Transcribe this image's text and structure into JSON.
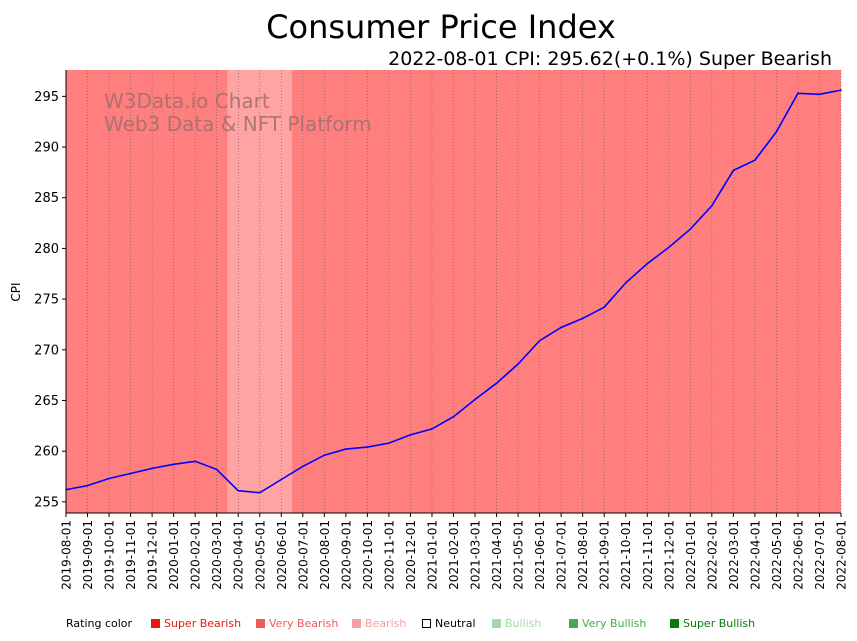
{
  "chart_data": {
    "type": "line",
    "title": "Consumer Price Index",
    "subtitle": "2022-08-01 CPI: 295.62(+0.1%) Super Bearish",
    "ylabel": "CPI",
    "xlabel": "",
    "ylim": [
      253.9,
      297.6
    ],
    "yticks": [
      255,
      260,
      265,
      270,
      275,
      280,
      285,
      290,
      295
    ],
    "grid": "vertical dotted",
    "watermark": [
      "W3Data.io Chart",
      "Web3 Data & NFT Platform"
    ],
    "categories": [
      "2019-08-01",
      "2019-09-01",
      "2019-10-01",
      "2019-11-01",
      "2019-12-01",
      "2020-01-01",
      "2020-02-01",
      "2020-03-01",
      "2020-04-01",
      "2020-05-01",
      "2020-06-01",
      "2020-07-01",
      "2020-08-01",
      "2020-09-01",
      "2020-10-01",
      "2020-11-01",
      "2020-12-01",
      "2021-01-01",
      "2021-02-01",
      "2021-03-01",
      "2021-04-01",
      "2021-05-01",
      "2021-06-01",
      "2021-07-01",
      "2021-08-01",
      "2021-09-01",
      "2021-10-01",
      "2021-11-01",
      "2021-12-01",
      "2022-01-01",
      "2022-02-01",
      "2022-03-01",
      "2022-04-01",
      "2022-05-01",
      "2022-06-01",
      "2022-07-01",
      "2022-08-01"
    ],
    "series": [
      {
        "name": "CPI",
        "color": "#0000ff",
        "values": [
          256.2,
          256.6,
          257.3,
          257.8,
          258.3,
          258.7,
          259.0,
          258.2,
          256.1,
          255.9,
          257.2,
          258.5,
          259.6,
          260.2,
          260.4,
          260.8,
          261.6,
          262.2,
          263.4,
          265.1,
          266.7,
          268.6,
          270.9,
          272.2,
          273.1,
          274.2,
          276.6,
          278.5,
          280.1,
          281.9,
          284.2,
          287.7,
          288.7,
          291.5,
          295.3,
          295.2,
          295.62
        ]
      }
    ],
    "rating_bands": [
      {
        "start": "2019-08-01",
        "end": "2020-03-01",
        "rating": "Very Bearish"
      },
      {
        "start": "2020-04-01",
        "end": "2020-06-01",
        "rating": "Bearish"
      },
      {
        "start": "2020-07-01",
        "end": "2022-08-01",
        "rating": "Very Bearish"
      }
    ]
  },
  "legend": {
    "title": "Rating color",
    "items": [
      {
        "label": "Super Bearish",
        "color": "#e8170f"
      },
      {
        "label": "Very Bearish",
        "color": "#f05a5a"
      },
      {
        "label": "Bearish",
        "color": "#f4a0a0"
      },
      {
        "label": "Neutral",
        "color": "#000000"
      },
      {
        "label": "Bullish",
        "color": "#a6d7a6"
      },
      {
        "label": "Very Bullish",
        "color": "#4aa84a"
      },
      {
        "label": "Super Bullish",
        "color": "#0a7a0a"
      }
    ]
  },
  "colors": {
    "Very Bearish": "#ff7f7f",
    "Bearish": "#ffa3a3",
    "line": "#0000ff"
  }
}
